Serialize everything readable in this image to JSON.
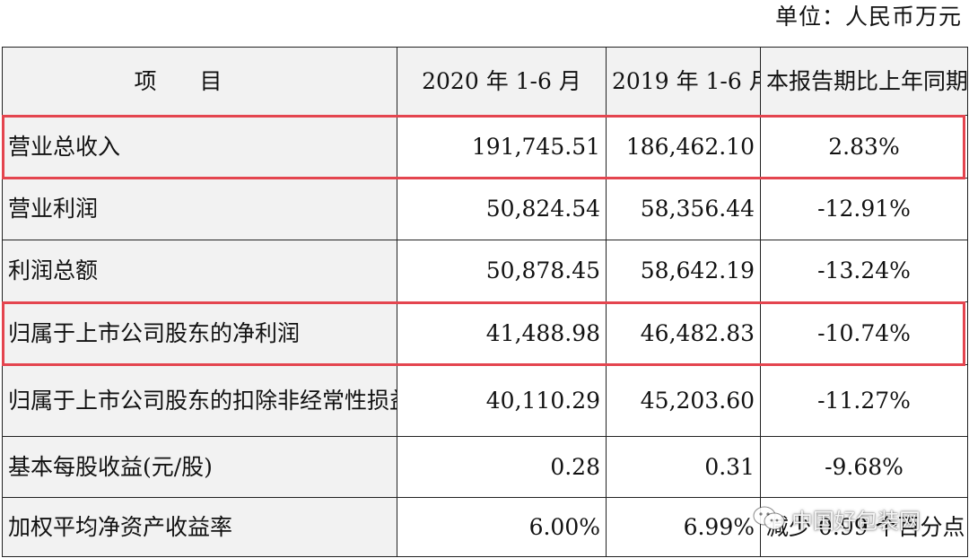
{
  "unit_label": "单位：人民币万元",
  "columns": {
    "item": "项目",
    "y2020": "2020 年 1-6 月",
    "y2019": "2019 年 1-6 月",
    "change": "本报告期比上年同期增减"
  },
  "rows": [
    {
      "item": "营业总收入",
      "y2020": "191,745.51",
      "y2019": "186,462.10",
      "change": "2.83%",
      "highlighted": true
    },
    {
      "item": "营业利润",
      "y2020": "50,824.54",
      "y2019": "58,356.44",
      "change": "-12.91%",
      "highlighted": false
    },
    {
      "item": "利润总额",
      "y2020": "50,878.45",
      "y2019": "58,642.19",
      "change": "-13.24%",
      "highlighted": false
    },
    {
      "item": "归属于上市公司股东的净利润",
      "y2020": "41,488.98",
      "y2019": "46,482.83",
      "change": "-10.74%",
      "highlighted": true
    },
    {
      "item": "归属于上市公司股东的扣除非经常性损益净利润",
      "y2020": "40,110.29",
      "y2019": "45,203.60",
      "change": "-11.27%",
      "highlighted": false
    },
    {
      "item": "基本每股收益(元/股)",
      "y2020": "0.28",
      "y2019": "0.31",
      "change": "-9.68%",
      "highlighted": false
    },
    {
      "item": "加权平均净资产收益率",
      "y2020": "6.00%",
      "y2019": "6.99%",
      "change": "减少 0.99 个百分点",
      "highlighted": false
    }
  ],
  "watermark": {
    "text": "中国好包装网",
    "icon": "wechat-logo-icon"
  },
  "colors": {
    "highlight": "#e4454f",
    "label_bg": "#f2f2f2",
    "border": "#222222"
  }
}
